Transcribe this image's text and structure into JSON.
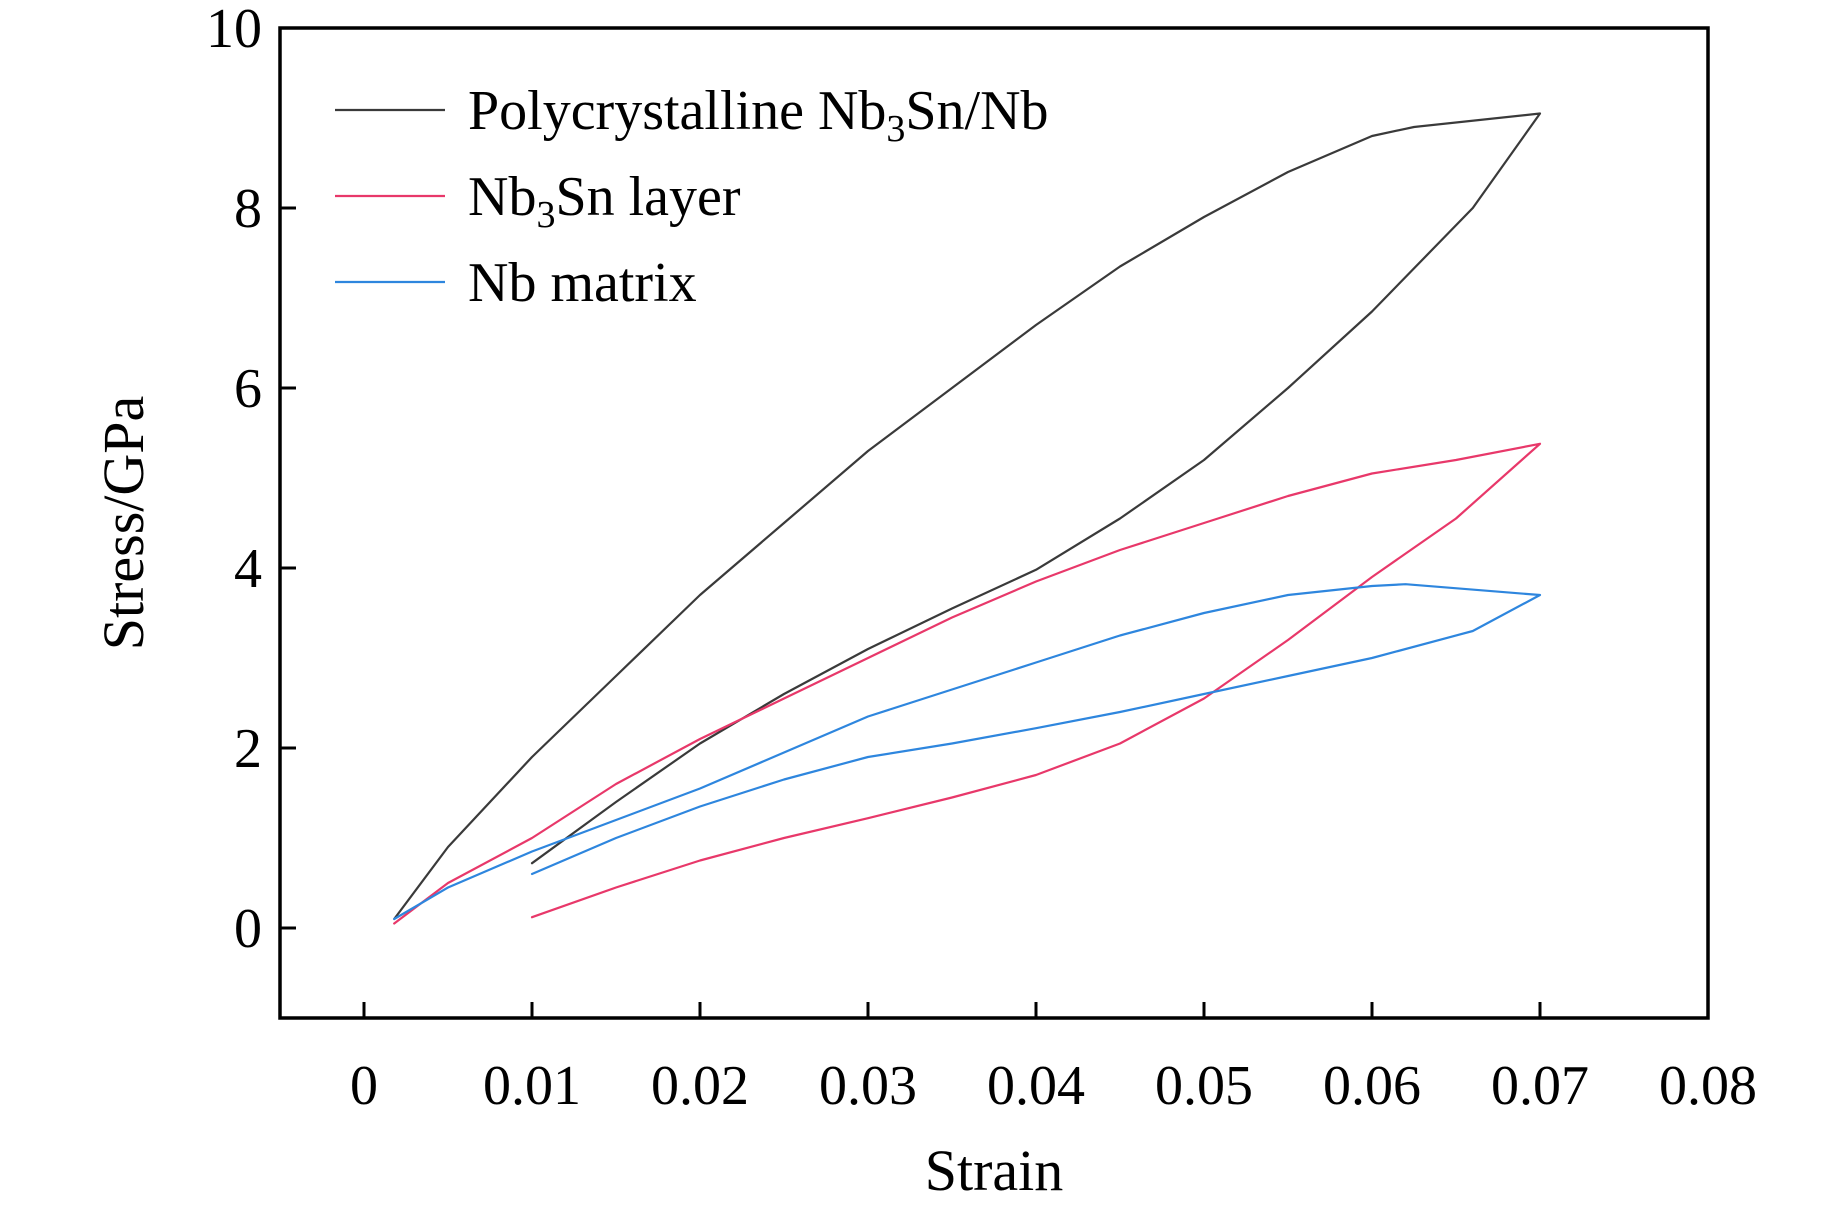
{
  "chart_data": {
    "type": "line",
    "title": "",
    "xlabel": "Strain",
    "ylabel": "Stress/GPa",
    "xlim": [
      -0.005,
      0.08
    ],
    "ylim": [
      -1,
      10
    ],
    "xticks": [
      0,
      0.01,
      0.02,
      0.03,
      0.04,
      0.05,
      0.06,
      0.07,
      0.08
    ],
    "xtick_labels": [
      "0",
      "0.01",
      "0.02",
      "0.03",
      "0.04",
      "0.05",
      "0.06",
      "0.07",
      "0.08"
    ],
    "yticks": [
      0,
      2,
      4,
      6,
      8,
      10
    ],
    "ytick_labels": [
      "0",
      "2",
      "4",
      "6",
      "8",
      "10"
    ],
    "grid": false,
    "legend_position": "top-left",
    "series": [
      {
        "name": "Polycrystalline Nb3Sn/Nb",
        "legend": {
          "main": "Polycrystalline Nb",
          "sub": "3",
          "rest": "Sn/Nb"
        },
        "color": "#3a3a3a",
        "x": [
          0.0018,
          0.005,
          0.01,
          0.015,
          0.02,
          0.025,
          0.03,
          0.035,
          0.04,
          0.045,
          0.05,
          0.055,
          0.06,
          0.0625,
          0.07,
          0.066,
          0.06,
          0.055,
          0.05,
          0.045,
          0.04,
          0.035,
          0.03,
          0.025,
          0.02,
          0.015,
          0.01
        ],
        "y": [
          0.1,
          0.9,
          1.9,
          2.8,
          3.7,
          4.5,
          5.3,
          6.0,
          6.7,
          7.35,
          7.9,
          8.4,
          8.8,
          8.9,
          9.05,
          8.0,
          6.85,
          6.0,
          5.2,
          4.55,
          3.98,
          3.55,
          3.1,
          2.6,
          2.05,
          1.4,
          0.72
        ]
      },
      {
        "name": "Nb3Sn layer",
        "legend": {
          "main": "Nb",
          "sub": "3",
          "rest": "Sn layer"
        },
        "color": "#e8386a",
        "x": [
          0.0018,
          0.005,
          0.01,
          0.015,
          0.02,
          0.025,
          0.03,
          0.035,
          0.04,
          0.045,
          0.05,
          0.055,
          0.06,
          0.065,
          0.07,
          0.065,
          0.06,
          0.055,
          0.05,
          0.045,
          0.04,
          0.035,
          0.03,
          0.025,
          0.02,
          0.015,
          0.01
        ],
        "y": [
          0.05,
          0.5,
          1.0,
          1.6,
          2.1,
          2.55,
          3.0,
          3.45,
          3.85,
          4.2,
          4.5,
          4.8,
          5.05,
          5.2,
          5.38,
          4.55,
          3.9,
          3.2,
          2.55,
          2.05,
          1.7,
          1.45,
          1.22,
          1.0,
          0.75,
          0.45,
          0.12
        ]
      },
      {
        "name": "Nb matrix",
        "legend": {
          "main": "Nb matrix",
          "sub": "",
          "rest": ""
        },
        "color": "#2e86de",
        "x": [
          0.0018,
          0.005,
          0.01,
          0.015,
          0.02,
          0.025,
          0.03,
          0.035,
          0.04,
          0.045,
          0.05,
          0.055,
          0.06,
          0.062,
          0.07,
          0.066,
          0.06,
          0.055,
          0.05,
          0.045,
          0.04,
          0.035,
          0.03,
          0.025,
          0.02,
          0.015,
          0.01
        ],
        "y": [
          0.1,
          0.45,
          0.85,
          1.2,
          1.55,
          1.95,
          2.35,
          2.65,
          2.95,
          3.25,
          3.5,
          3.7,
          3.8,
          3.82,
          3.7,
          3.3,
          3.0,
          2.8,
          2.6,
          2.4,
          2.22,
          2.05,
          1.9,
          1.65,
          1.35,
          1.0,
          0.6
        ]
      }
    ]
  }
}
